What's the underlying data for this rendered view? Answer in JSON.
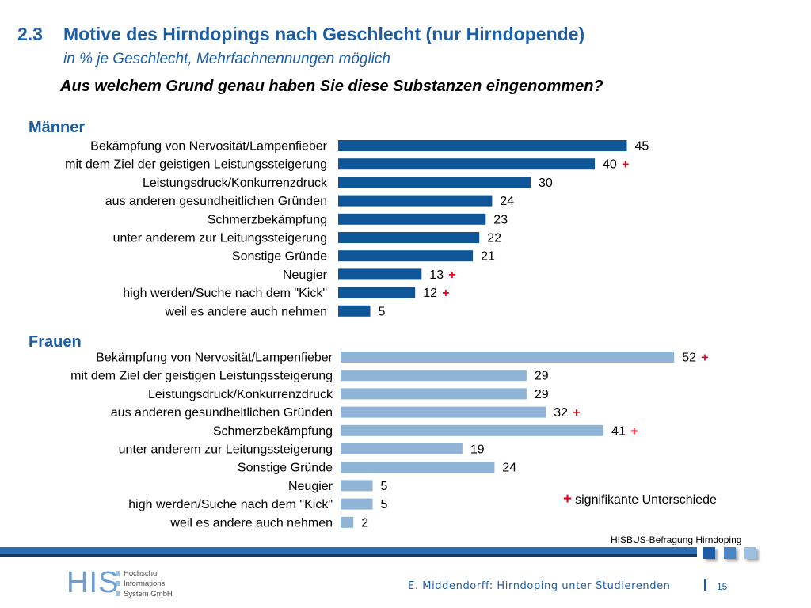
{
  "header": {
    "section_number": "2.3",
    "title": "Motive des Hirndopings nach Geschlecht (nur Hirndopende)",
    "subtitle": "in % je Geschlecht, Mehrfachnennungen möglich",
    "question": "Aus welchem Grund genau haben Sie diese Substanzen eingenommen?"
  },
  "colors": {
    "maenner_bar": "#0f5698",
    "frauen_bar": "#8fb4d6",
    "significance_mark": "#e3001b",
    "title": "#1b5ea5"
  },
  "chart_data": [
    {
      "type": "bar",
      "orientation": "horizontal",
      "title": "Männer",
      "categories": [
        "Bekämpfung von Nervosität/Lampenfieber",
        "mit dem Ziel der geistigen Leistungssteigerung",
        "Leistungsdruck/Konkurrenzdruck",
        "aus anderen gesundheitlichen Gründen",
        "Schmerzbekämpfung",
        "unter anderem zur Leitungssteigerung",
        "Sonstige Gründe",
        "Neugier",
        "high werden/Suche nach dem \"Kick\"",
        "weil es andere auch nehmen"
      ],
      "values": [
        45,
        40,
        30,
        24,
        23,
        22,
        21,
        13,
        12,
        5
      ],
      "significant": [
        false,
        true,
        false,
        false,
        false,
        false,
        false,
        true,
        true,
        false
      ],
      "xlim": [
        0,
        55
      ],
      "grid": false,
      "data_labels": true
    },
    {
      "type": "bar",
      "orientation": "horizontal",
      "title": "Frauen",
      "categories": [
        "Bekämpfung von Nervosität/Lampenfieber",
        "mit dem Ziel der geistigen Leistungssteigerung",
        "Leistungsdruck/Konkurrenzdruck",
        "aus anderen gesundheitlichen Gründen",
        "Schmerzbekämpfung",
        "unter anderem zur Leitungssteigerung",
        "Sonstige Gründe",
        "Neugier",
        "high werden/Suche nach dem \"Kick\"",
        "weil es andere auch nehmen"
      ],
      "values": [
        52,
        29,
        29,
        32,
        41,
        19,
        24,
        5,
        5,
        2
      ],
      "significant": [
        true,
        false,
        false,
        true,
        true,
        false,
        false,
        false,
        false,
        false
      ],
      "xlim": [
        0,
        55
      ],
      "grid": false,
      "data_labels": true
    }
  ],
  "legend": {
    "symbol": "+",
    "text": "signifikante Unterschiede"
  },
  "source": "HISBUS-Befragung Hirndoping",
  "footer": {
    "logo_text": "HIS",
    "logo_lines": [
      "Hochschul",
      "Informations",
      "System GmbH"
    ],
    "author_text": "E. Middendorff: Hirndoping unter Studierenden",
    "page_number": "15"
  }
}
